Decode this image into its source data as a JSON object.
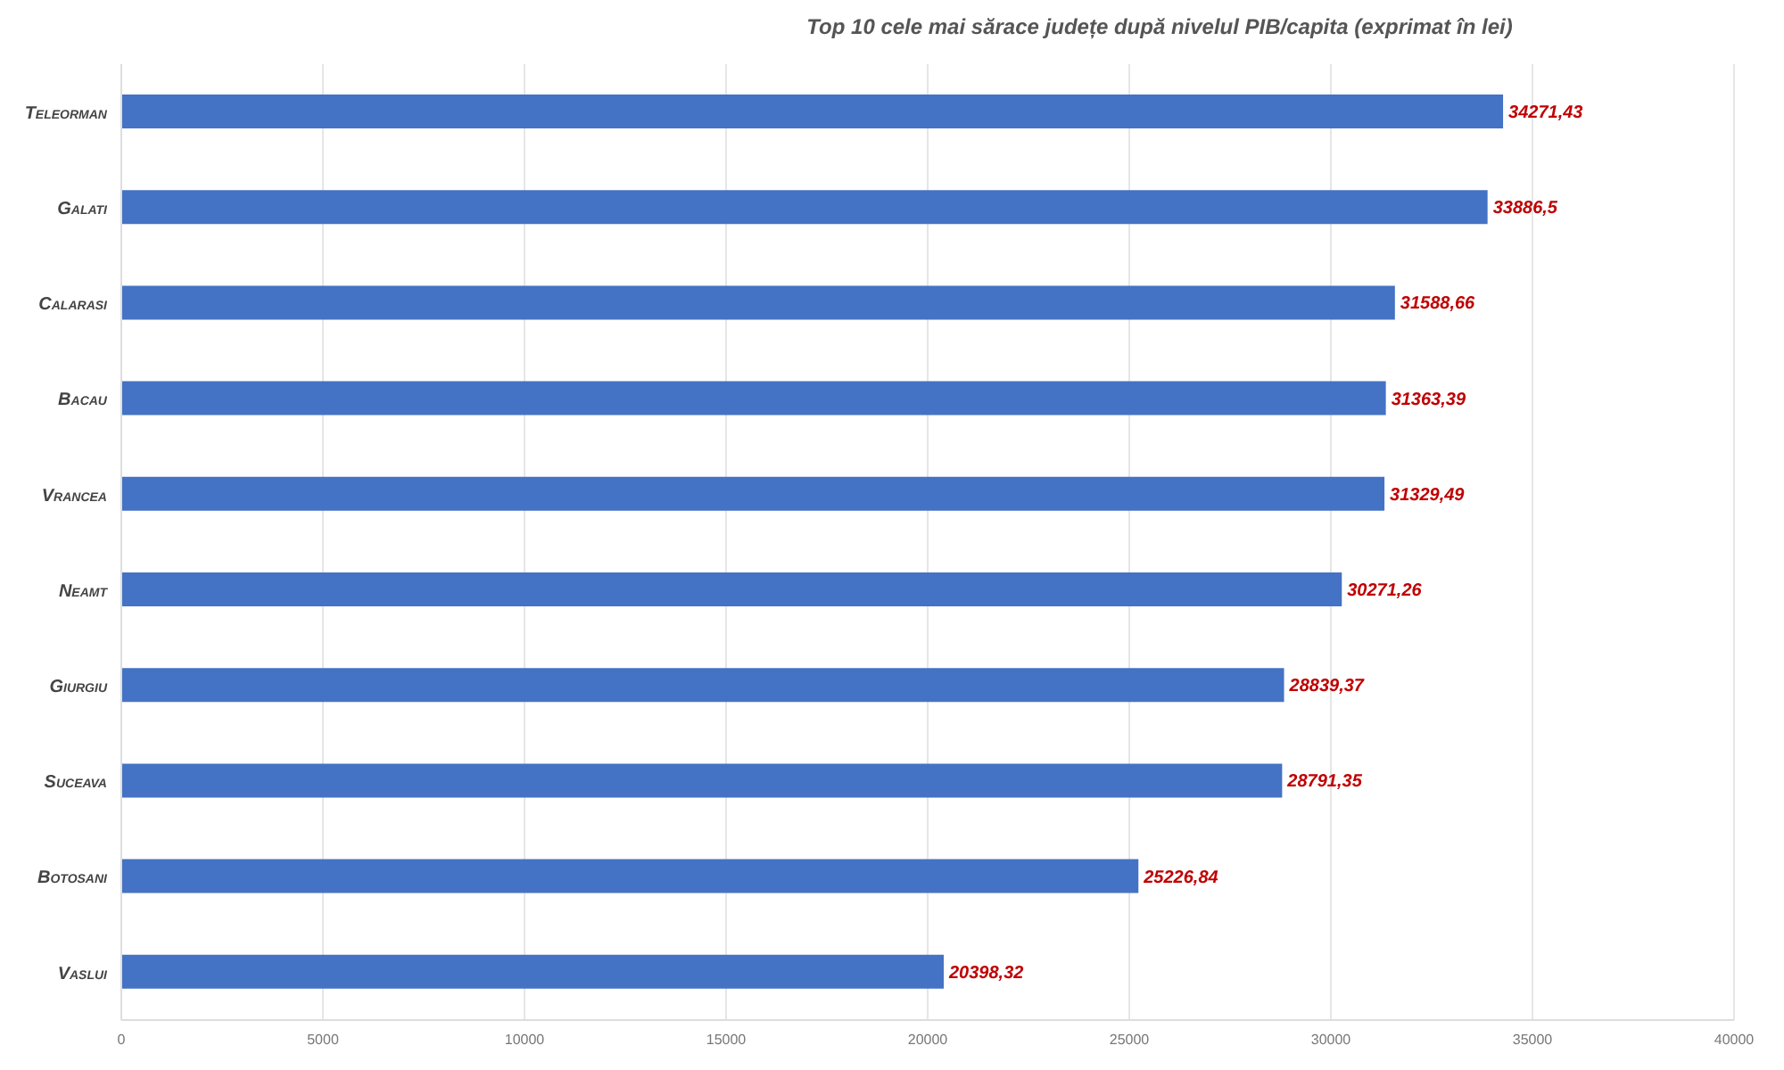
{
  "chart_data": {
    "type": "bar",
    "orientation": "horizontal",
    "title": "Top 10 cele mai sărace județe după nivelul PIB/capita (exprimat în lei)",
    "categories": [
      "Teleorman",
      "Galati",
      "Calarasi",
      "Bacau",
      "Vrancea",
      "Neamt",
      "Giurgiu",
      "Suceava",
      "Botosani",
      "Vaslui"
    ],
    "values": [
      34271.43,
      33886.5,
      31588.66,
      31363.39,
      31329.49,
      30271.26,
      28839.37,
      28791.35,
      25226.84,
      20398.32
    ],
    "value_labels": [
      "34271,43",
      "33886,5",
      "31588,66",
      "31363,39",
      "31329,49",
      "30271,26",
      "28839,37",
      "28791,35",
      "25226,84",
      "20398,32"
    ],
    "color": "#4472c4",
    "xlim": [
      0,
      40000
    ],
    "xticks": [
      0,
      5000,
      10000,
      15000,
      20000,
      25000,
      30000,
      35000,
      40000
    ],
    "grid": "x",
    "legend": false
  }
}
